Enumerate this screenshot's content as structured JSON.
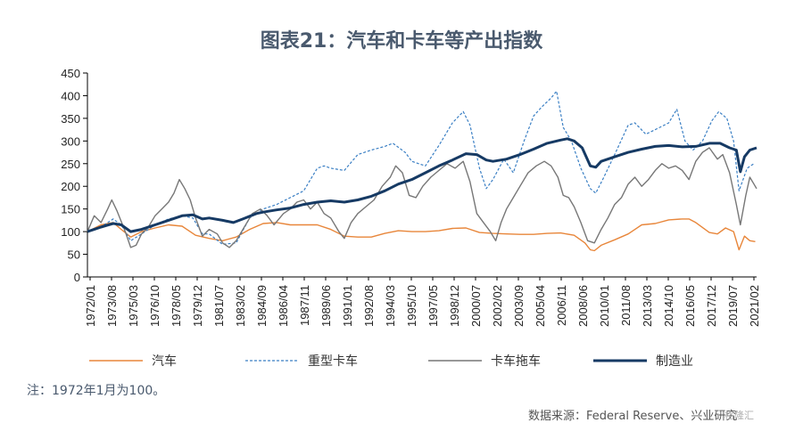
{
  "title": "图表21：汽车和卡车等产出指数",
  "note": "注：1972年1月为100。",
  "source": "数据来源：Federal Reserve、兴业研究",
  "watermark": "格隆汇",
  "chart_data": {
    "type": "line",
    "ylim": [
      0,
      450
    ],
    "yticks": [
      0,
      50,
      100,
      150,
      200,
      250,
      300,
      350,
      400,
      450
    ],
    "xlim": [
      1972.0,
      2021.5
    ],
    "xtick_labels": [
      "1972/01",
      "1973/08",
      "1975/03",
      "1976/10",
      "1978/05",
      "1979/12",
      "1981/07",
      "1983/02",
      "1984/09",
      "1986/04",
      "1987/11",
      "1989/06",
      "1991/01",
      "1992/08",
      "1994/03",
      "1995/10",
      "1997/05",
      "1998/12",
      "2000/07",
      "2002/02",
      "2003/09",
      "2005/04",
      "2006/11",
      "2008/06",
      "2010/01",
      "2011/08",
      "2013/03",
      "2014/10",
      "2016/05",
      "2017/12",
      "2019/07",
      "2021/02"
    ],
    "legend": [
      "汽车",
      "重型卡车",
      "卡车拖车",
      "制造业"
    ],
    "series": [
      {
        "name": "汽车",
        "color": "#e8863a",
        "style": "solid",
        "points": [
          [
            1972.0,
            100
          ],
          [
            1973.0,
            115
          ],
          [
            1973.9,
            120
          ],
          [
            1974.5,
            105
          ],
          [
            1975.2,
            88
          ],
          [
            1976.0,
            100
          ],
          [
            1977.0,
            108
          ],
          [
            1978.0,
            115
          ],
          [
            1979.0,
            112
          ],
          [
            1980.0,
            92
          ],
          [
            1981.0,
            85
          ],
          [
            1982.0,
            80
          ],
          [
            1983.0,
            88
          ],
          [
            1984.0,
            105
          ],
          [
            1985.0,
            118
          ],
          [
            1986.0,
            120
          ],
          [
            1987.0,
            115
          ],
          [
            1988.0,
            115
          ],
          [
            1989.0,
            115
          ],
          [
            1990.0,
            105
          ],
          [
            1991.0,
            90
          ],
          [
            1992.0,
            88
          ],
          [
            1993.0,
            88
          ],
          [
            1994.0,
            96
          ],
          [
            1995.0,
            102
          ],
          [
            1996.0,
            100
          ],
          [
            1997.0,
            100
          ],
          [
            1998.0,
            102
          ],
          [
            1999.0,
            107
          ],
          [
            2000.0,
            108
          ],
          [
            2001.0,
            98
          ],
          [
            2002.0,
            96
          ],
          [
            2003.0,
            95
          ],
          [
            2004.0,
            94
          ],
          [
            2005.0,
            94
          ],
          [
            2006.0,
            96
          ],
          [
            2007.0,
            97
          ],
          [
            2008.0,
            92
          ],
          [
            2008.8,
            75
          ],
          [
            2009.2,
            60
          ],
          [
            2009.5,
            58
          ],
          [
            2010.0,
            70
          ],
          [
            2011.0,
            82
          ],
          [
            2012.0,
            95
          ],
          [
            2013.0,
            115
          ],
          [
            2014.0,
            118
          ],
          [
            2015.0,
            126
          ],
          [
            2016.0,
            128
          ],
          [
            2016.5,
            128
          ],
          [
            2017.0,
            120
          ],
          [
            2018.0,
            98
          ],
          [
            2018.6,
            95
          ],
          [
            2019.2,
            108
          ],
          [
            2019.8,
            100
          ],
          [
            2020.2,
            60
          ],
          [
            2020.6,
            90
          ],
          [
            2021.0,
            80
          ],
          [
            2021.4,
            78
          ]
        ]
      },
      {
        "name": "重型卡车",
        "color": "#3a7fc4",
        "style": "dashed",
        "points": [
          [
            1972.0,
            100
          ],
          [
            1973.0,
            110
          ],
          [
            1973.9,
            128
          ],
          [
            1974.5,
            115
          ],
          [
            1975.2,
            80
          ],
          [
            1976.0,
            95
          ],
          [
            1977.0,
            115
          ],
          [
            1978.0,
            128
          ],
          [
            1979.0,
            135
          ],
          [
            1979.8,
            130
          ],
          [
            1980.5,
            95
          ],
          [
            1981.0,
            95
          ],
          [
            1982.0,
            72
          ],
          [
            1983.0,
            75
          ],
          [
            1984.0,
            130
          ],
          [
            1985.0,
            150
          ],
          [
            1986.0,
            160
          ],
          [
            1987.0,
            175
          ],
          [
            1988.0,
            190
          ],
          [
            1989.0,
            240
          ],
          [
            1989.5,
            245
          ],
          [
            1990.0,
            240
          ],
          [
            1991.0,
            235
          ],
          [
            1992.0,
            270
          ],
          [
            1993.0,
            280
          ],
          [
            1994.0,
            288
          ],
          [
            1994.6,
            295
          ],
          [
            1995.5,
            275
          ],
          [
            1996.0,
            255
          ],
          [
            1997.0,
            245
          ],
          [
            1998.0,
            290
          ],
          [
            1999.0,
            340
          ],
          [
            1999.8,
            365
          ],
          [
            2000.3,
            335
          ],
          [
            2001.0,
            240
          ],
          [
            2001.5,
            195
          ],
          [
            2002.0,
            215
          ],
          [
            2002.8,
            260
          ],
          [
            2003.5,
            230
          ],
          [
            2004.3,
            300
          ],
          [
            2005.0,
            355
          ],
          [
            2005.6,
            375
          ],
          [
            2006.3,
            395
          ],
          [
            2006.7,
            410
          ],
          [
            2007.2,
            330
          ],
          [
            2007.8,
            300
          ],
          [
            2008.5,
            240
          ],
          [
            2009.2,
            195
          ],
          [
            2009.6,
            185
          ],
          [
            2010.2,
            220
          ],
          [
            2011.0,
            270
          ],
          [
            2012.0,
            335
          ],
          [
            2012.5,
            340
          ],
          [
            2013.3,
            315
          ],
          [
            2014.0,
            325
          ],
          [
            2015.0,
            340
          ],
          [
            2015.6,
            370
          ],
          [
            2016.2,
            300
          ],
          [
            2016.8,
            280
          ],
          [
            2017.5,
            300
          ],
          [
            2018.2,
            345
          ],
          [
            2018.7,
            365
          ],
          [
            2019.3,
            350
          ],
          [
            2019.8,
            300
          ],
          [
            2020.2,
            190
          ],
          [
            2020.8,
            240
          ],
          [
            2021.3,
            250
          ]
        ]
      },
      {
        "name": "卡车拖车",
        "color": "#777777",
        "style": "solid",
        "points": [
          [
            1972.0,
            100
          ],
          [
            1972.5,
            135
          ],
          [
            1973.0,
            120
          ],
          [
            1973.5,
            150
          ],
          [
            1973.8,
            170
          ],
          [
            1974.2,
            145
          ],
          [
            1974.8,
            100
          ],
          [
            1975.2,
            65
          ],
          [
            1975.6,
            70
          ],
          [
            1976.0,
            95
          ],
          [
            1976.5,
            110
          ],
          [
            1977.0,
            135
          ],
          [
            1977.5,
            150
          ],
          [
            1978.0,
            165
          ],
          [
            1978.4,
            185
          ],
          [
            1978.8,
            215
          ],
          [
            1979.2,
            195
          ],
          [
            1979.6,
            170
          ],
          [
            1980.0,
            130
          ],
          [
            1980.5,
            90
          ],
          [
            1981.0,
            105
          ],
          [
            1981.6,
            95
          ],
          [
            1982.0,
            75
          ],
          [
            1982.5,
            65
          ],
          [
            1983.0,
            80
          ],
          [
            1983.6,
            110
          ],
          [
            1984.2,
            140
          ],
          [
            1984.8,
            150
          ],
          [
            1985.3,
            135
          ],
          [
            1985.8,
            115
          ],
          [
            1986.5,
            140
          ],
          [
            1987.0,
            150
          ],
          [
            1987.5,
            165
          ],
          [
            1988.0,
            170
          ],
          [
            1988.5,
            150
          ],
          [
            1989.0,
            165
          ],
          [
            1989.5,
            140
          ],
          [
            1990.0,
            130
          ],
          [
            1990.6,
            100
          ],
          [
            1991.0,
            85
          ],
          [
            1991.5,
            120
          ],
          [
            1992.0,
            140
          ],
          [
            1992.6,
            155
          ],
          [
            1993.2,
            170
          ],
          [
            1993.8,
            200
          ],
          [
            1994.4,
            220
          ],
          [
            1994.8,
            245
          ],
          [
            1995.3,
            230
          ],
          [
            1995.8,
            180
          ],
          [
            1996.3,
            175
          ],
          [
            1996.8,
            200
          ],
          [
            1997.4,
            220
          ],
          [
            1998.0,
            235
          ],
          [
            1998.6,
            250
          ],
          [
            1999.2,
            240
          ],
          [
            1999.8,
            255
          ],
          [
            2000.3,
            210
          ],
          [
            2000.8,
            140
          ],
          [
            2001.3,
            120
          ],
          [
            2001.8,
            100
          ],
          [
            2002.2,
            80
          ],
          [
            2002.6,
            120
          ],
          [
            2003.0,
            150
          ],
          [
            2003.5,
            175
          ],
          [
            2004.0,
            200
          ],
          [
            2004.6,
            230
          ],
          [
            2005.2,
            245
          ],
          [
            2005.8,
            255
          ],
          [
            2006.3,
            245
          ],
          [
            2006.8,
            220
          ],
          [
            2007.2,
            180
          ],
          [
            2007.6,
            175
          ],
          [
            2008.0,
            155
          ],
          [
            2008.5,
            120
          ],
          [
            2009.0,
            80
          ],
          [
            2009.5,
            75
          ],
          [
            2010.0,
            105
          ],
          [
            2010.5,
            130
          ],
          [
            2011.0,
            160
          ],
          [
            2011.5,
            175
          ],
          [
            2012.0,
            205
          ],
          [
            2012.5,
            220
          ],
          [
            2013.0,
            200
          ],
          [
            2013.5,
            215
          ],
          [
            2014.0,
            235
          ],
          [
            2014.5,
            250
          ],
          [
            2015.0,
            240
          ],
          [
            2015.5,
            245
          ],
          [
            2016.0,
            235
          ],
          [
            2016.5,
            215
          ],
          [
            2017.0,
            255
          ],
          [
            2017.5,
            275
          ],
          [
            2018.0,
            285
          ],
          [
            2018.6,
            260
          ],
          [
            2019.0,
            270
          ],
          [
            2019.5,
            230
          ],
          [
            2020.0,
            160
          ],
          [
            2020.3,
            115
          ],
          [
            2020.7,
            180
          ],
          [
            2021.0,
            220
          ],
          [
            2021.3,
            205
          ],
          [
            2021.5,
            195
          ]
        ]
      },
      {
        "name": "制造业",
        "color": "#163a64",
        "style": "bold",
        "points": [
          [
            1972.0,
            100
          ],
          [
            1972.5,
            105
          ],
          [
            1973.0,
            110
          ],
          [
            1973.9,
            118
          ],
          [
            1974.5,
            115
          ],
          [
            1975.2,
            100
          ],
          [
            1976.0,
            105
          ],
          [
            1977.0,
            115
          ],
          [
            1978.0,
            125
          ],
          [
            1979.0,
            135
          ],
          [
            1979.8,
            137
          ],
          [
            1980.5,
            128
          ],
          [
            1981.0,
            130
          ],
          [
            1982.0,
            125
          ],
          [
            1982.8,
            120
          ],
          [
            1983.5,
            128
          ],
          [
            1984.5,
            140
          ],
          [
            1985.0,
            143
          ],
          [
            1986.0,
            148
          ],
          [
            1987.0,
            152
          ],
          [
            1988.0,
            160
          ],
          [
            1989.0,
            165
          ],
          [
            1990.0,
            168
          ],
          [
            1991.0,
            165
          ],
          [
            1992.0,
            170
          ],
          [
            1993.0,
            178
          ],
          [
            1994.0,
            190
          ],
          [
            1995.0,
            205
          ],
          [
            1996.0,
            215
          ],
          [
            1997.0,
            230
          ],
          [
            1998.0,
            245
          ],
          [
            1999.0,
            258
          ],
          [
            2000.0,
            272
          ],
          [
            2000.8,
            270
          ],
          [
            2001.5,
            258
          ],
          [
            2002.0,
            255
          ],
          [
            2003.0,
            260
          ],
          [
            2004.0,
            270
          ],
          [
            2005.0,
            282
          ],
          [
            2006.0,
            295
          ],
          [
            2007.0,
            302
          ],
          [
            2007.5,
            305
          ],
          [
            2008.0,
            300
          ],
          [
            2008.6,
            285
          ],
          [
            2009.2,
            245
          ],
          [
            2009.6,
            242
          ],
          [
            2010.0,
            255
          ],
          [
            2011.0,
            265
          ],
          [
            2012.0,
            275
          ],
          [
            2013.0,
            282
          ],
          [
            2014.0,
            288
          ],
          [
            2015.0,
            290
          ],
          [
            2016.0,
            287
          ],
          [
            2017.0,
            288
          ],
          [
            2018.0,
            295
          ],
          [
            2018.8,
            295
          ],
          [
            2019.5,
            285
          ],
          [
            2020.0,
            280
          ],
          [
            2020.3,
            232
          ],
          [
            2020.6,
            265
          ],
          [
            2021.0,
            280
          ],
          [
            2021.5,
            285
          ]
        ]
      }
    ]
  }
}
